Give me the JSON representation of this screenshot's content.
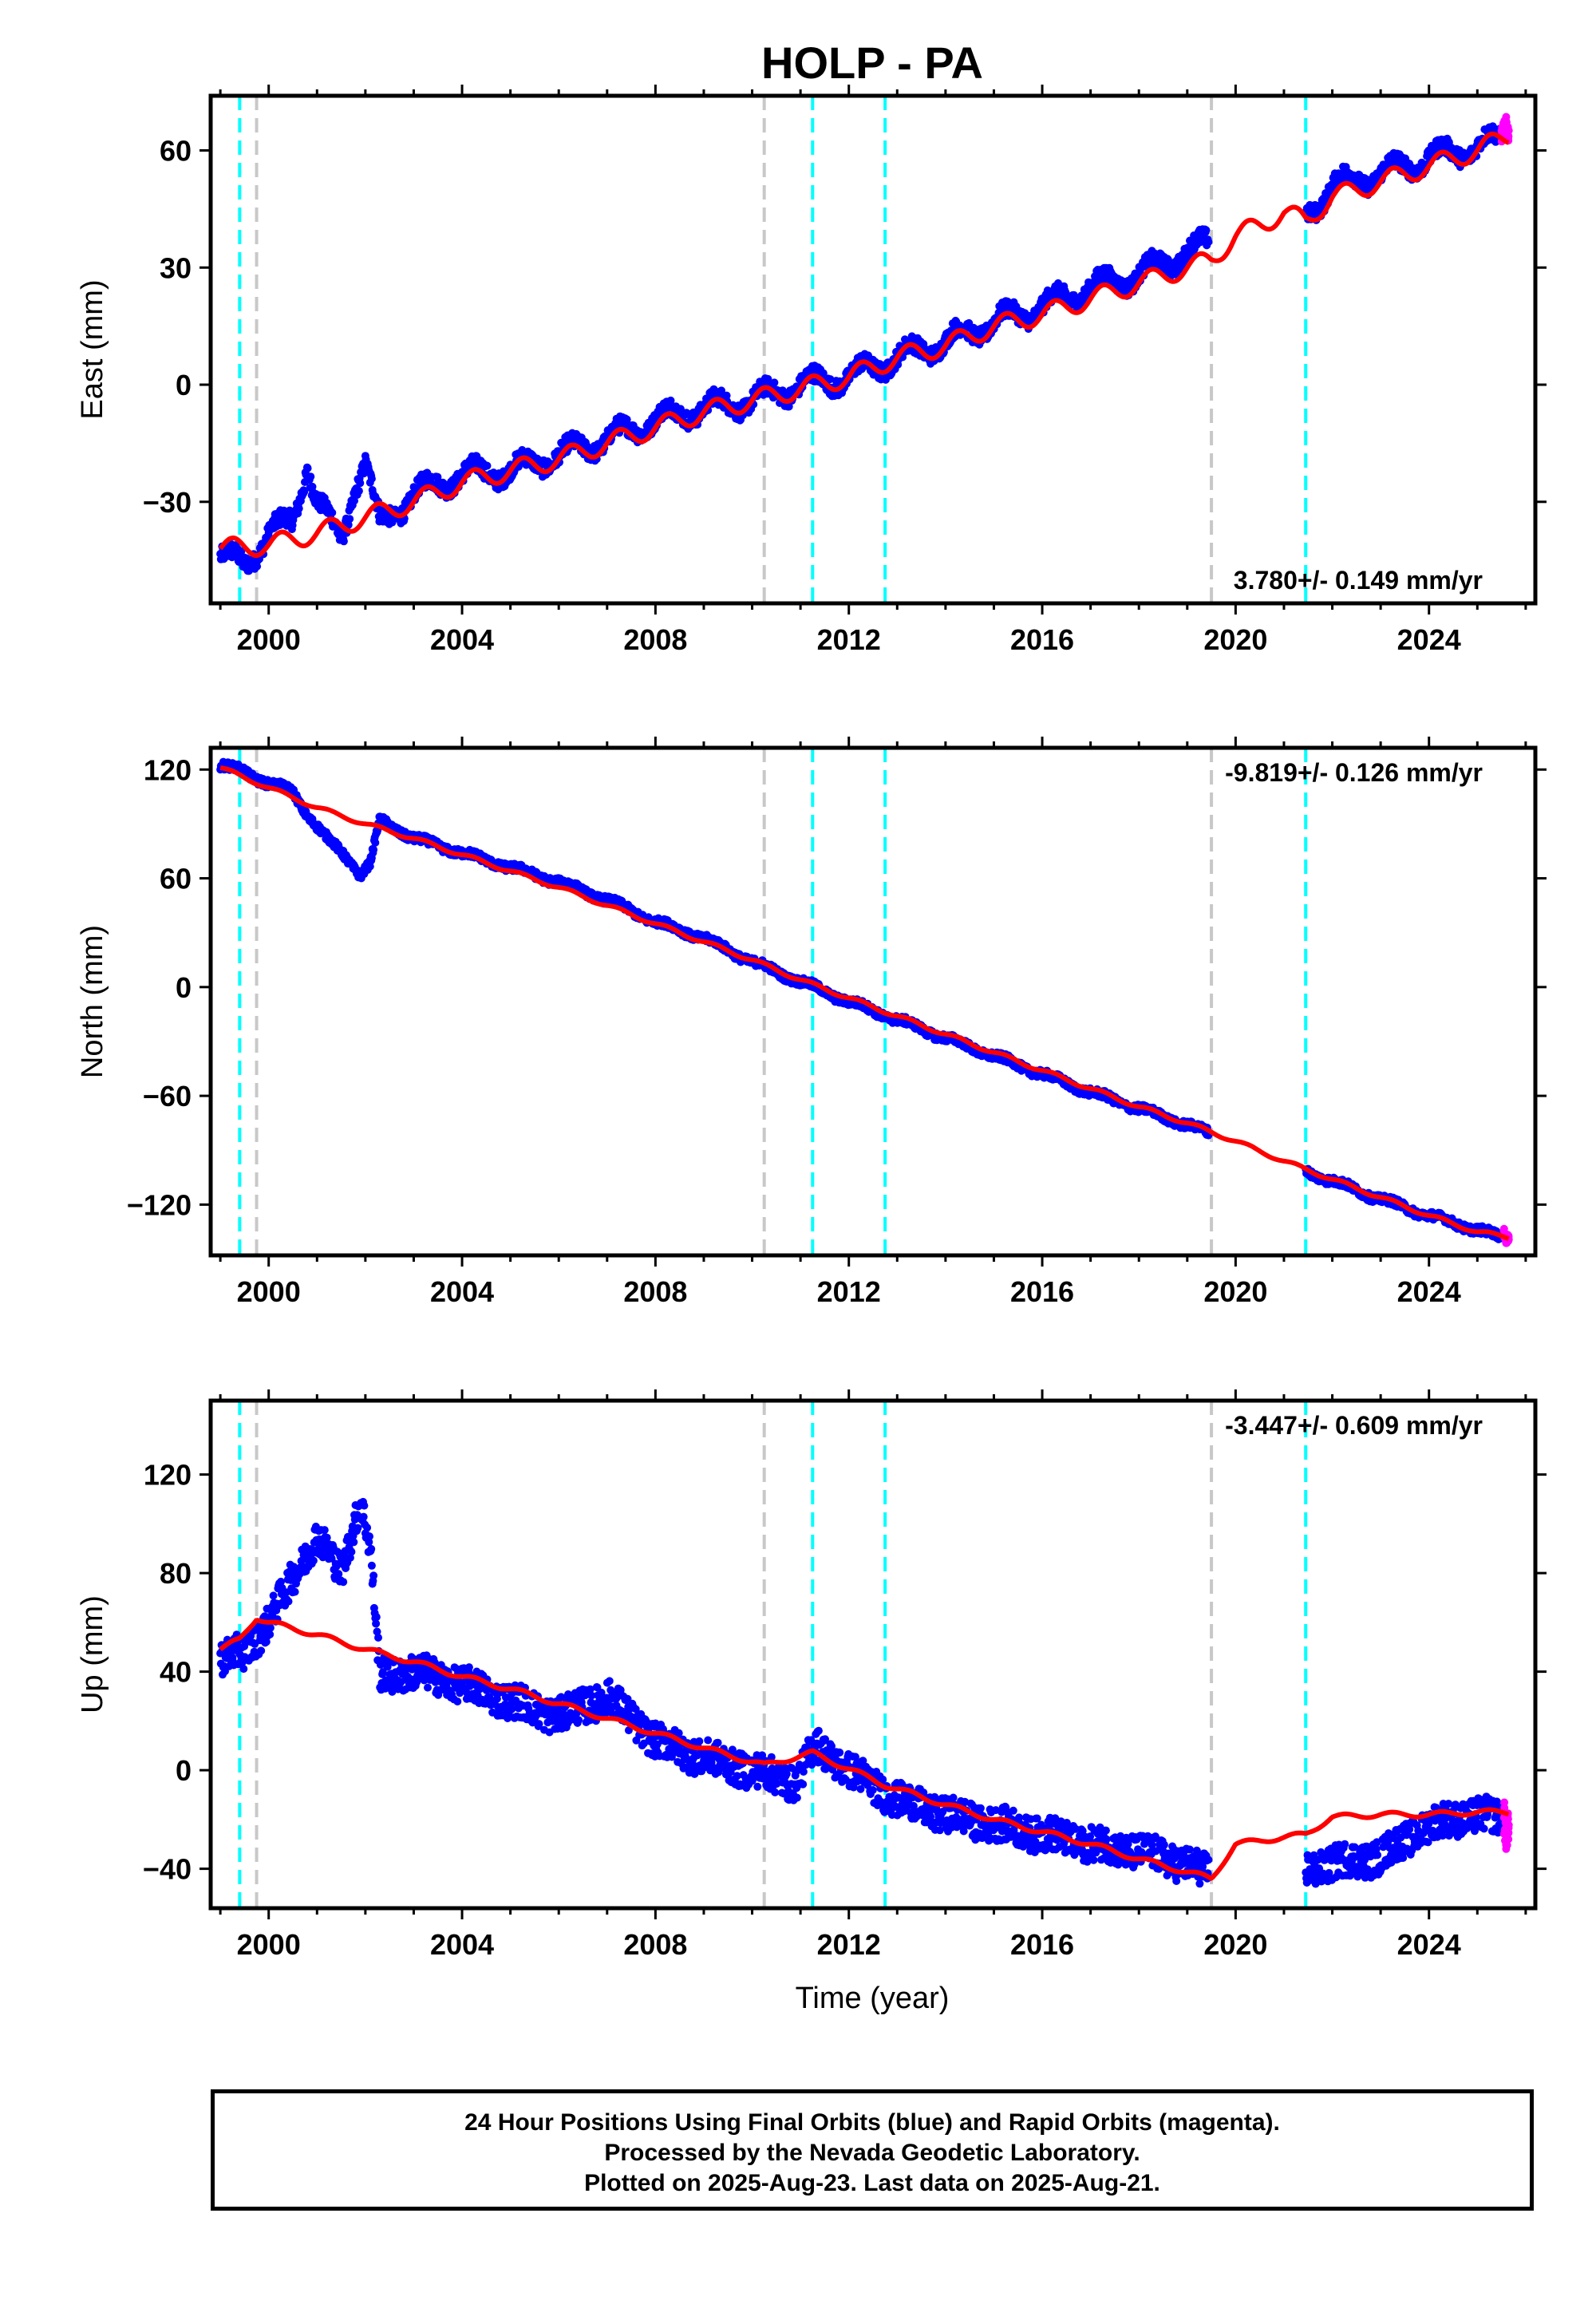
{
  "title": "HOLP - PA",
  "xlabel": "Time (year)",
  "footer": {
    "line1": "24 Hour Positions Using Final Orbits (blue) and Rapid Orbits (magenta).",
    "line2": "Processed by the Nevada Geodetic Laboratory.",
    "line3": "Plotted on 2025-Aug-23. Last data on 2025-Aug-21."
  },
  "colors": {
    "final": "#0000ff",
    "rapid": "#ff00ff",
    "model": "#ff0000",
    "equipment_change": "#00ffff",
    "other_event": "#c8c8c8"
  },
  "chart_data": [
    {
      "type": "scatter",
      "component": "East",
      "ylabel": "East (mm)",
      "xlim": [
        1998.8,
        2026.2
      ],
      "ylim": [
        -56,
        74
      ],
      "yticks": [
        -30,
        0,
        30,
        60
      ],
      "xticks": [
        2000,
        2004,
        2008,
        2012,
        2016,
        2020,
        2024
      ],
      "rate_label": "3.780+/- 0.149 mm/yr",
      "rate_position": "bottom-right",
      "events_cyan": [
        1999.4,
        2011.25,
        2012.75,
        2021.45
      ],
      "events_gray": [
        1999.75,
        2010.25,
        2019.5
      ],
      "series": [
        {
          "name": "Final Orbits",
          "color": "#0000ff",
          "x": [
            1999.0,
            1999.5,
            2000.0,
            2000.5,
            2000.8,
            2001.0,
            2001.5,
            2001.8,
            2002.0,
            2002.3,
            2003.0,
            2004.0,
            2005.0,
            2006.0,
            2007.0,
            2008.0,
            2009.0,
            2010.0,
            2011.0,
            2012.0,
            2013.0,
            2014.0,
            2015.0,
            2016.0,
            2017.0,
            2018.0,
            2019.0,
            2019.4,
            2021.5,
            2022.0,
            2023.0,
            2024.0,
            2025.0,
            2025.5
          ],
          "y": [
            -44,
            -46,
            -38,
            -35,
            -20,
            -30,
            -40,
            -25,
            -20,
            -36,
            -28,
            -23,
            -22,
            -18,
            -14,
            -9,
            -6,
            -4,
            0,
            2,
            7,
            11,
            16,
            20,
            25,
            28,
            34,
            36,
            44,
            51,
            54,
            58,
            61,
            63
          ]
        },
        {
          "name": "Rapid Orbits",
          "color": "#ff00ff",
          "x": [
            2025.5,
            2025.6,
            2025.65
          ],
          "y": [
            64,
            68,
            66
          ]
        },
        {
          "name": "Model",
          "color": "#ff0000",
          "x": [
            1999.0,
            2000.0,
            2001.0,
            2002.0,
            2003.0,
            2004.0,
            2005.0,
            2006.0,
            2007.0,
            2008.0,
            2009.0,
            2010.0,
            2011.0,
            2012.0,
            2013.0,
            2014.0,
            2015.0,
            2016.0,
            2017.0,
            2018.0,
            2019.0,
            2019.5,
            2020.0,
            2021.0,
            2021.45,
            2022.0,
            2023.0,
            2024.0,
            2025.0,
            2025.65
          ],
          "y": [
            -42,
            -41,
            -38,
            -34,
            -30,
            -25,
            -22,
            -19,
            -15,
            -11,
            -7,
            -4,
            -1,
            2,
            7,
            10,
            15,
            18,
            22,
            26,
            30,
            32,
            38,
            44,
            42,
            48,
            52,
            56,
            60,
            64
          ]
        }
      ]
    },
    {
      "type": "scatter",
      "component": "North",
      "ylabel": "North (mm)",
      "xlim": [
        1998.8,
        2026.2
      ],
      "ylim": [
        -148,
        132
      ],
      "yticks": [
        -120,
        -60,
        0,
        60,
        120
      ],
      "xticks": [
        2000,
        2004,
        2008,
        2012,
        2016,
        2020,
        2024
      ],
      "rate_label": "-9.819+/- 0.126 mm/yr",
      "rate_position": "top-right",
      "events_cyan": [
        1999.4,
        2011.25,
        2012.75,
        2021.45
      ],
      "events_gray": [
        1999.75,
        2010.25,
        2019.5
      ],
      "series": [
        {
          "name": "Final Orbits",
          "color": "#0000ff",
          "x": [
            1999.0,
            1999.5,
            2000.0,
            2000.5,
            2000.8,
            2001.2,
            2001.6,
            2001.9,
            2002.1,
            2002.3,
            2003.0,
            2004.0,
            2005.0,
            2006.0,
            2007.0,
            2008.0,
            2009.0,
            2010.0,
            2011.0,
            2012.0,
            2013.0,
            2014.0,
            2015.0,
            2016.0,
            2017.0,
            2018.0,
            2019.0,
            2019.4,
            2021.5,
            2022.0,
            2023.0,
            2024.0,
            2025.0,
            2025.5
          ],
          "y": [
            122,
            119,
            112,
            108,
            95,
            82,
            72,
            62,
            68,
            92,
            82,
            74,
            66,
            58,
            48,
            36,
            27,
            14,
            3,
            -8,
            -18,
            -28,
            -38,
            -48,
            -58,
            -67,
            -76,
            -80,
            -102,
            -107,
            -117,
            -126,
            -134,
            -138
          ]
        },
        {
          "name": "Rapid Orbits",
          "color": "#ff00ff",
          "x": [
            2025.55,
            2025.6,
            2025.65
          ],
          "y": [
            -135,
            -139,
            -137
          ]
        },
        {
          "name": "Model",
          "color": "#ff0000",
          "x": [
            1999.0,
            2000.0,
            2001.0,
            2002.0,
            2003.0,
            2004.0,
            2005.0,
            2006.0,
            2007.0,
            2008.0,
            2009.0,
            2010.0,
            2011.0,
            2012.0,
            2013.0,
            2014.0,
            2015.0,
            2016.0,
            2017.0,
            2018.0,
            2019.0,
            2019.5,
            2020.0,
            2021.0,
            2022.0,
            2023.0,
            2024.0,
            2025.0,
            2025.65
          ],
          "y": [
            121,
            110,
            99,
            90,
            82,
            73,
            64,
            55,
            45,
            35,
            25,
            15,
            4,
            -6,
            -16,
            -26,
            -36,
            -46,
            -56,
            -66,
            -75,
            -80,
            -85,
            -96,
            -106,
            -116,
            -126,
            -135,
            -138
          ]
        }
      ]
    },
    {
      "type": "scatter",
      "component": "Up",
      "ylabel": "Up (mm)",
      "xlim": [
        1998.8,
        2026.2
      ],
      "ylim": [
        -56,
        150
      ],
      "yticks": [
        -40,
        0,
        40,
        80,
        120
      ],
      "xticks": [
        2000,
        2004,
        2008,
        2012,
        2016,
        2020,
        2024
      ],
      "rate_label": "-3.447+/- 0.609 mm/yr",
      "rate_position": "top-right",
      "events_cyan": [
        1999.4,
        2011.25,
        2012.75,
        2021.45
      ],
      "events_gray": [
        1999.75,
        2010.25,
        2019.5
      ],
      "series": [
        {
          "name": "Final Orbits",
          "color": "#0000ff",
          "x": [
            1999.0,
            1999.5,
            2000.0,
            2000.5,
            2001.0,
            2001.5,
            2001.9,
            2002.1,
            2002.3,
            2003.0,
            2004.0,
            2005.0,
            2006.0,
            2007.0,
            2008.0,
            2009.0,
            2010.0,
            2010.9,
            2011.3,
            2012.0,
            2013.0,
            2014.0,
            2015.0,
            2016.0,
            2017.0,
            2018.0,
            2019.0,
            2019.4,
            2021.5,
            2022.0,
            2023.0,
            2024.0,
            2025.0,
            2025.5
          ],
          "y": [
            45,
            48,
            60,
            78,
            95,
            80,
            110,
            90,
            38,
            40,
            35,
            28,
            22,
            30,
            12,
            5,
            0,
            -5,
            10,
            0,
            -12,
            -18,
            -22,
            -26,
            -30,
            -33,
            -38,
            -42,
            -40,
            -38,
            -35,
            -22,
            -18,
            -20
          ]
        },
        {
          "name": "Rapid Orbits",
          "color": "#ff00ff",
          "x": [
            2025.55,
            2025.6,
            2025.65
          ],
          "y": [
            -18,
            -26,
            -22
          ]
        },
        {
          "name": "Model",
          "color": "#ff0000",
          "x": [
            1999.0,
            1999.4,
            1999.75,
            2000.0,
            2001.0,
            2002.0,
            2003.0,
            2004.0,
            2005.0,
            2006.0,
            2007.0,
            2008.0,
            2009.0,
            2010.25,
            2011.25,
            2012.75,
            2014.0,
            2015.0,
            2016.0,
            2017.0,
            2018.0,
            2019.5,
            2020.0,
            2021.45,
            2022.0,
            2023.0,
            2024.0,
            2025.0,
            2025.65
          ],
          "y": [
            49,
            53,
            62,
            60,
            55,
            49,
            44,
            38,
            33,
            27,
            21,
            15,
            9,
            2,
            7,
            -6,
            -14,
            -20,
            -25,
            -30,
            -36,
            -44,
            -30,
            -26,
            -19,
            -18,
            -18,
            -17,
            -17
          ]
        }
      ]
    }
  ]
}
